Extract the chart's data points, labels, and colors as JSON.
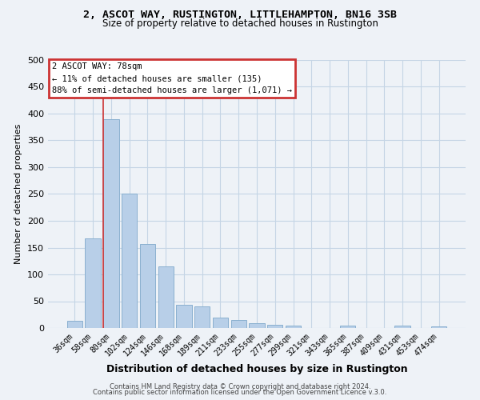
{
  "title": "2, ASCOT WAY, RUSTINGTON, LITTLEHAMPTON, BN16 3SB",
  "subtitle": "Size of property relative to detached houses in Rustington",
  "xlabel": "Distribution of detached houses by size in Rustington",
  "ylabel": "Number of detached properties",
  "bar_labels": [
    "36sqm",
    "58sqm",
    "80sqm",
    "102sqm",
    "124sqm",
    "146sqm",
    "168sqm",
    "189sqm",
    "211sqm",
    "233sqm",
    "255sqm",
    "277sqm",
    "299sqm",
    "321sqm",
    "343sqm",
    "365sqm",
    "387sqm",
    "409sqm",
    "431sqm",
    "453sqm",
    "474sqm"
  ],
  "bar_values": [
    13,
    167,
    390,
    250,
    157,
    115,
    43,
    40,
    19,
    15,
    9,
    6,
    4,
    0,
    0,
    5,
    0,
    0,
    5,
    0,
    3
  ],
  "bar_color": "#b8cfe8",
  "bar_edge_color": "#8ab0d0",
  "grid_color": "#c5d5e5",
  "background_color": "#eef2f7",
  "vline_color": "#cc3333",
  "annotation_text": "2 ASCOT WAY: 78sqm\n← 11% of detached houses are smaller (135)\n88% of semi-detached houses are larger (1,071) →",
  "annotation_box_color": "#cc3333",
  "ylim": [
    0,
    500
  ],
  "yticks": [
    0,
    50,
    100,
    150,
    200,
    250,
    300,
    350,
    400,
    450,
    500
  ],
  "footer_line1": "Contains HM Land Registry data © Crown copyright and database right 2024.",
  "footer_line2": "Contains public sector information licensed under the Open Government Licence v.3.0.",
  "title_fontsize": 9.5,
  "subtitle_fontsize": 8.5,
  "ylabel_fontsize": 8,
  "xlabel_fontsize": 9,
  "tick_fontsize": 7,
  "annotation_fontsize": 7.5,
  "footer_fontsize": 6
}
